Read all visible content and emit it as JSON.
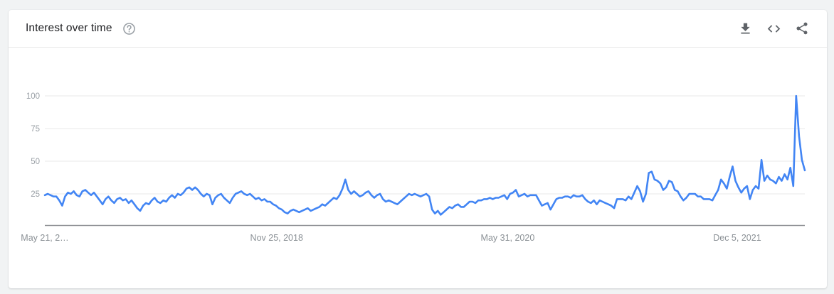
{
  "page": {
    "background_color": "#f1f3f4"
  },
  "card": {
    "header": {
      "title": "Interest over time",
      "help_icon": "help-circle-icon",
      "actions": [
        {
          "icon": "download-icon"
        },
        {
          "icon": "embed-code-icon"
        },
        {
          "icon": "share-icon"
        }
      ]
    }
  },
  "chart_data": {
    "type": "line",
    "title": "Interest over time",
    "grid": true,
    "legend": "none",
    "x_axis": {
      "tick_labels": [
        {
          "label": "May 21, 2…",
          "position": 0
        },
        {
          "label": "Nov 25, 2018",
          "position": 0.305
        },
        {
          "label": "May 31, 2020",
          "position": 0.609
        },
        {
          "label": "Dec 5, 2021",
          "position": 0.911
        }
      ]
    },
    "y_axis": {
      "ticks": [
        25,
        50,
        75,
        100
      ],
      "range": [
        0,
        100
      ]
    },
    "series": [
      {
        "name": "interest",
        "color": "#4285f4",
        "values": [
          24,
          25,
          24,
          23,
          23,
          20,
          16,
          23,
          26,
          25,
          27,
          24,
          23,
          27,
          28,
          26,
          24,
          26,
          23,
          20,
          17,
          21,
          23,
          20,
          18,
          21,
          22,
          20,
          21,
          18,
          20,
          17,
          14,
          12,
          16,
          18,
          17,
          20,
          22,
          19,
          18,
          20,
          19,
          22,
          24,
          22,
          25,
          24,
          26,
          29,
          30,
          28,
          30,
          28,
          25,
          23,
          25,
          24,
          17,
          22,
          24,
          25,
          22,
          20,
          18,
          22,
          25,
          26,
          27,
          25,
          24,
          25,
          23,
          21,
          22,
          20,
          21,
          19,
          19,
          17,
          16,
          14,
          13,
          11,
          10,
          12,
          13,
          12,
          11,
          12,
          13,
          14,
          12,
          13,
          14,
          15,
          17,
          16,
          18,
          20,
          22,
          21,
          24,
          29,
          36,
          28,
          25,
          27,
          25,
          23,
          24,
          26,
          27,
          24,
          22,
          24,
          25,
          21,
          19,
          20,
          19,
          18,
          17,
          19,
          21,
          23,
          25,
          24,
          25,
          24,
          23,
          24,
          25,
          23,
          13,
          10,
          12,
          9,
          11,
          13,
          15,
          14,
          16,
          17,
          15,
          15,
          17,
          19,
          19,
          18,
          20,
          20,
          21,
          21,
          22,
          21,
          22,
          22,
          23,
          24,
          21,
          25,
          26,
          28,
          23,
          24,
          25,
          23,
          24,
          24,
          24,
          20,
          16,
          17,
          18,
          13,
          17,
          21,
          22,
          22,
          23,
          23,
          22,
          24,
          23,
          23,
          24,
          21,
          19,
          18,
          20,
          17,
          20,
          19,
          18,
          17,
          16,
          14,
          21,
          21,
          21,
          20,
          23,
          21,
          26,
          31,
          27,
          19,
          25,
          41,
          42,
          36,
          35,
          33,
          28,
          30,
          35,
          34,
          28,
          27,
          23,
          20,
          22,
          25,
          25,
          25,
          23,
          23,
          21,
          21,
          21,
          20,
          24,
          28,
          36,
          33,
          29,
          38,
          46,
          35,
          30,
          26,
          29,
          31,
          21,
          28,
          31,
          29,
          51,
          35,
          39,
          36,
          35,
          33,
          38,
          35,
          40,
          36,
          45,
          31,
          100,
          69,
          51,
          43
        ]
      }
    ],
    "theme": {
      "grid_color": "#e8e8e8",
      "axis_line_color": "#8f9195",
      "y_tick_color": "#9aa0a6",
      "x_tick_color": "#8b9196"
    }
  }
}
